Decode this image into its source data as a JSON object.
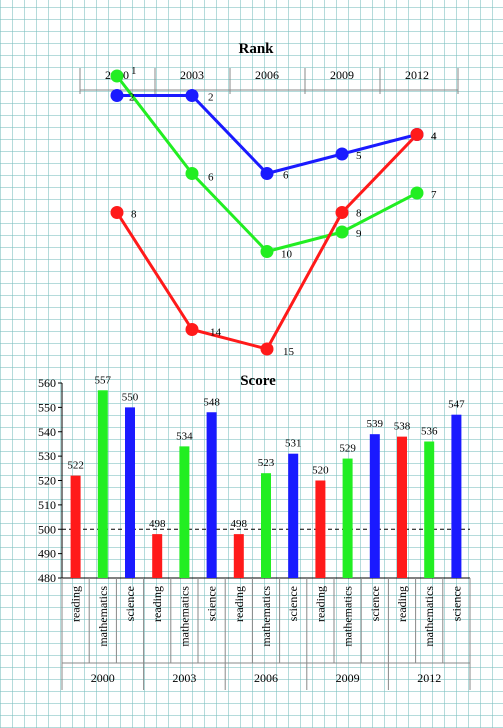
{
  "chart_data": [
    {
      "type": "line",
      "title": "Rank",
      "x": [
        "2000",
        "2003",
        "2006",
        "2009",
        "2012"
      ],
      "y_inverted": true,
      "ylim": [
        0,
        16
      ],
      "series": [
        {
          "values": [
            2,
            2,
            6,
            5,
            4
          ],
          "color": "#1a1aff"
        },
        {
          "values": [
            1,
            6,
            10,
            9,
            7
          ],
          "color": "#22ee22"
        },
        {
          "values": [
            8,
            14,
            15,
            8,
            4
          ],
          "color": "#ff1a1a"
        }
      ]
    },
    {
      "type": "bar",
      "title": "Score",
      "groups": [
        "2000",
        "2003",
        "2006",
        "2009",
        "2012"
      ],
      "categories": [
        "reading",
        "mathematics",
        "science"
      ],
      "category_colors": [
        "#ff1a1a",
        "#22ee22",
        "#1a1aff"
      ],
      "values": [
        [
          522,
          557,
          550
        ],
        [
          498,
          534,
          548
        ],
        [
          498,
          523,
          531
        ],
        [
          520,
          529,
          539
        ],
        [
          538,
          536,
          547
        ]
      ],
      "ylim": [
        480,
        560
      ],
      "yticks": [
        "480",
        "490",
        "500",
        "510",
        "520",
        "530",
        "540",
        "550",
        "560"
      ],
      "reference_line": 500
    }
  ]
}
